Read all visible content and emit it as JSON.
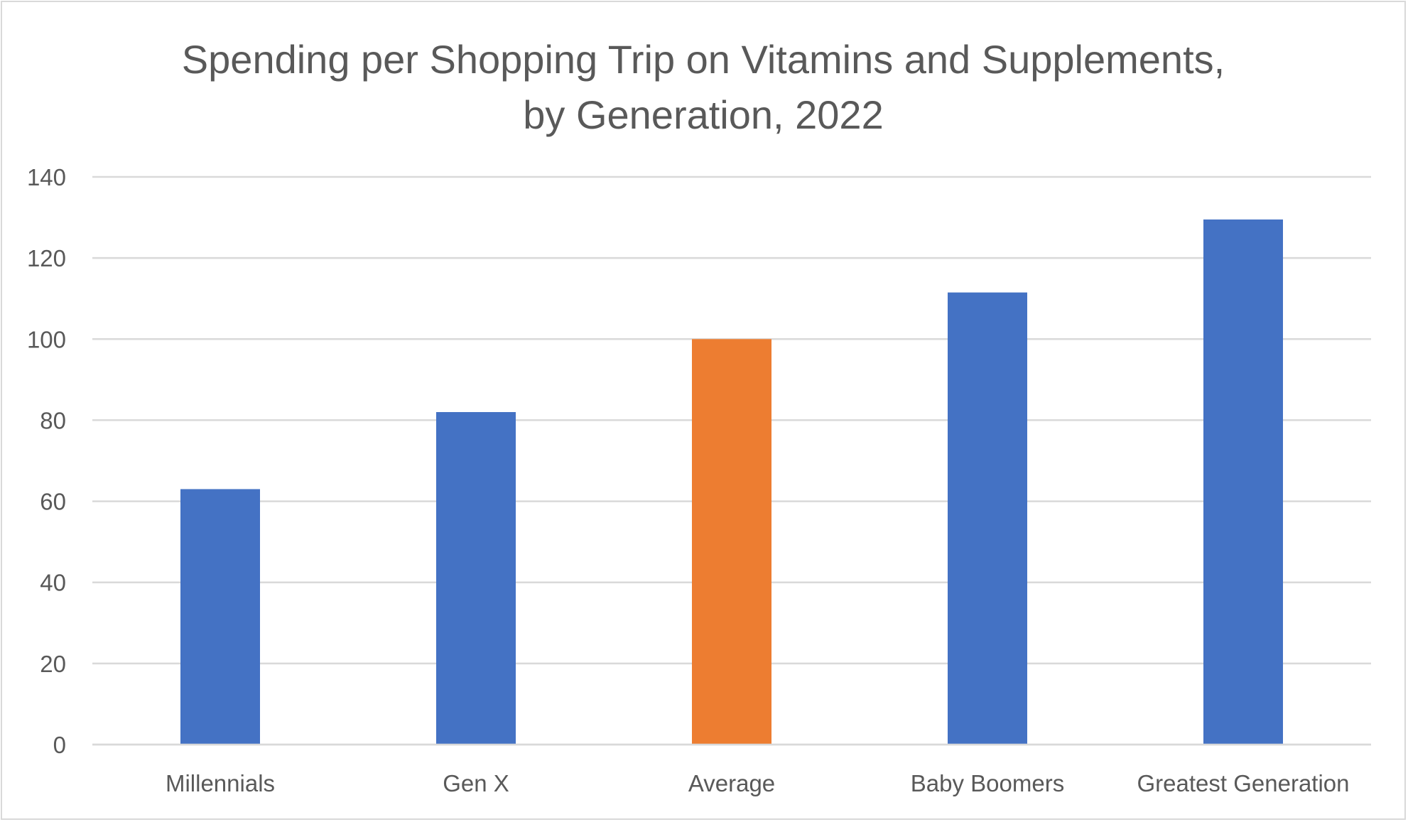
{
  "chart_data": {
    "type": "bar",
    "title_line1": "Spending per Shopping Trip on Vitamins and Supplements,",
    "title_line2": "by Generation, 2022",
    "categories": [
      "Millennials",
      "Gen X",
      "Average",
      "Baby Boomers",
      "Greatest Generation"
    ],
    "values": [
      63,
      82,
      100,
      111.5,
      129.5
    ],
    "bar_colors": [
      "#4472c4",
      "#4472c4",
      "#ed7d31",
      "#4472c4",
      "#4472c4"
    ],
    "ylim": [
      0,
      140
    ],
    "yticks": [
      0,
      20,
      40,
      60,
      80,
      100,
      120,
      140
    ],
    "grid": true,
    "legend": "none",
    "xlabel": "",
    "ylabel": ""
  }
}
